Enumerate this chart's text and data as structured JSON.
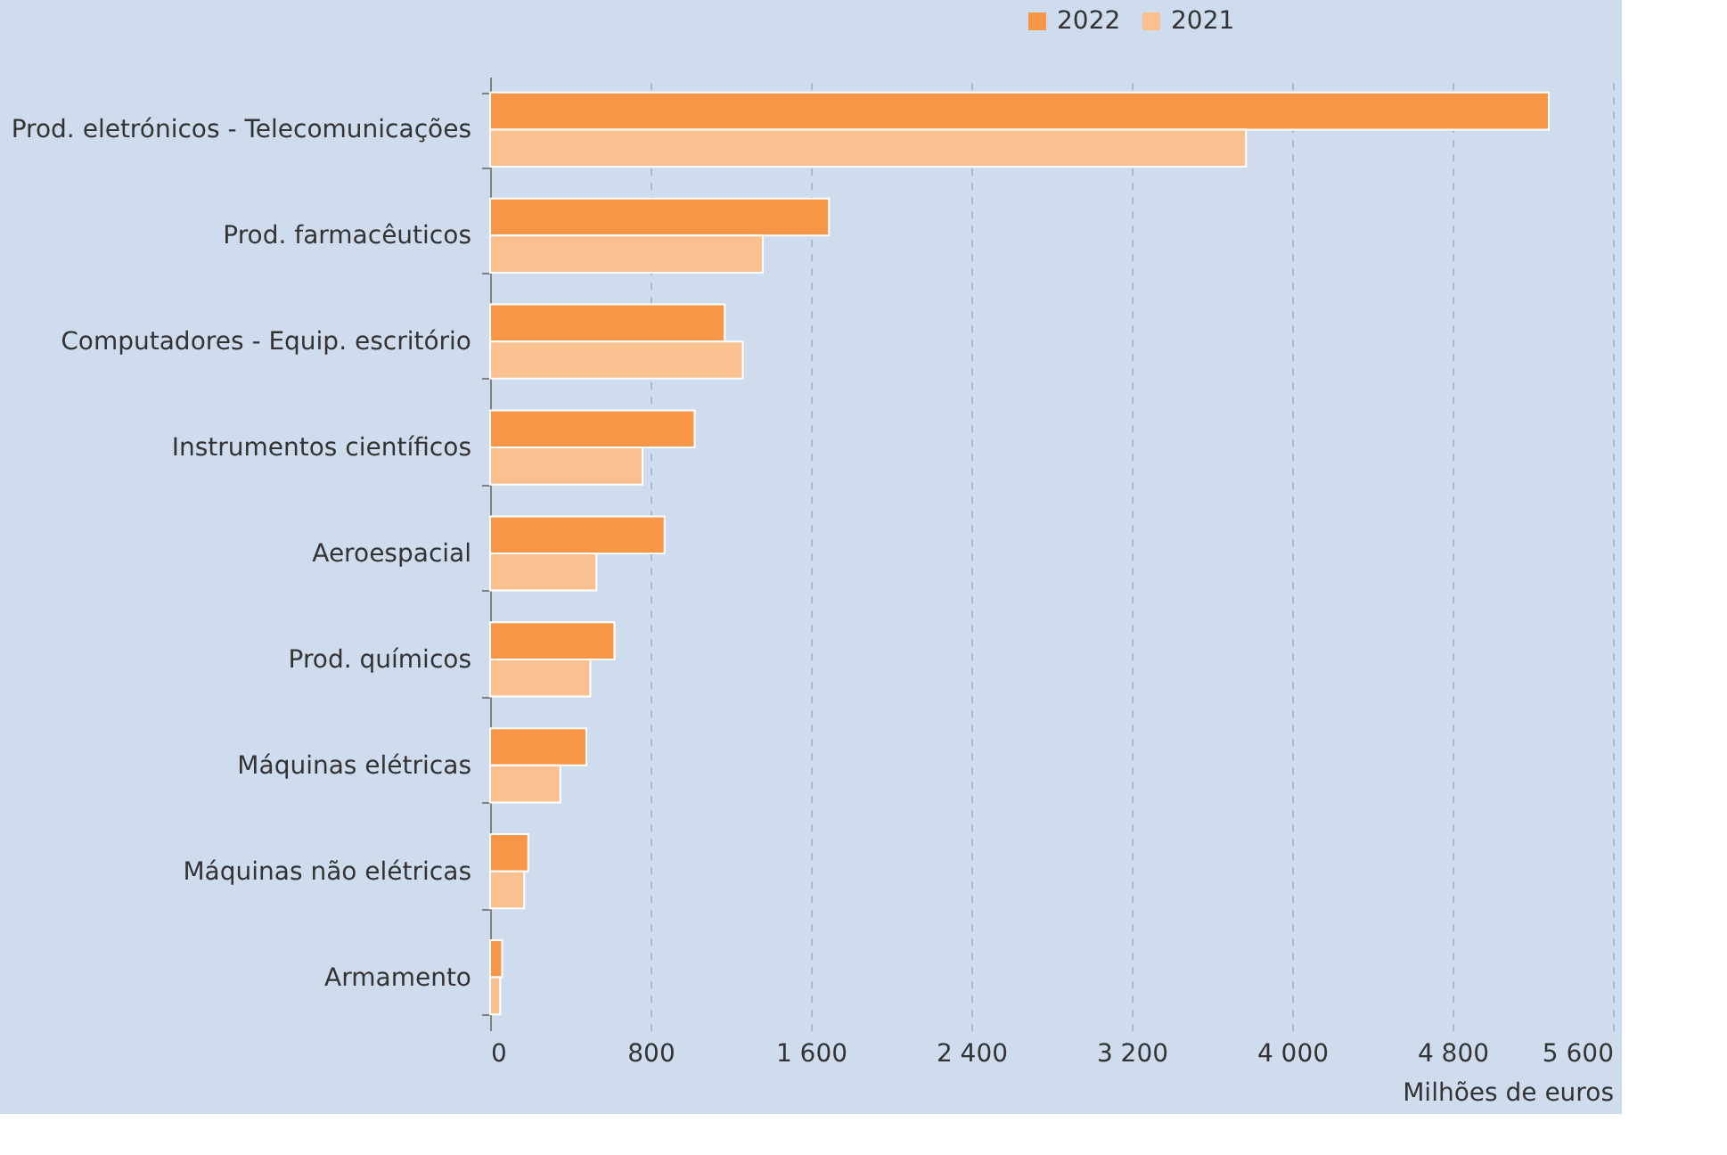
{
  "chart_data": {
    "type": "bar",
    "orientation": "horizontal",
    "xlabel": "Milhões de euros",
    "categories": [
      "Prod. eletrónicos - Telecomunicações",
      "Prod. farmacêuticos",
      "Computadores - Equip. escritório",
      "Instrumentos científicos",
      "Aeroespacial",
      "Prod. químicos",
      "Máquinas elétricas",
      "Máquinas não elétricas",
      "Armamento"
    ],
    "series": [
      {
        "name": "2022",
        "color": "#f79646",
        "values": [
          5280,
          1690,
          1170,
          1020,
          870,
          620,
          480,
          190,
          60
        ]
      },
      {
        "name": "2021",
        "color": "#fac090",
        "values": [
          3770,
          1360,
          1260,
          760,
          530,
          500,
          350,
          170,
          50
        ]
      }
    ],
    "xlim": [
      0,
      5600
    ],
    "xticks": [
      0,
      800,
      {
        "value": 1600,
        "label": "1 600"
      },
      {
        "value": 2400,
        "label": "2 400"
      },
      {
        "value": 3200,
        "label": "3 200"
      },
      {
        "value": 4000,
        "label": "4 000"
      },
      {
        "value": 4800,
        "label": "4 800"
      },
      {
        "value": 5600,
        "label": "5 600"
      }
    ],
    "grid": "x",
    "legend": "top right"
  }
}
